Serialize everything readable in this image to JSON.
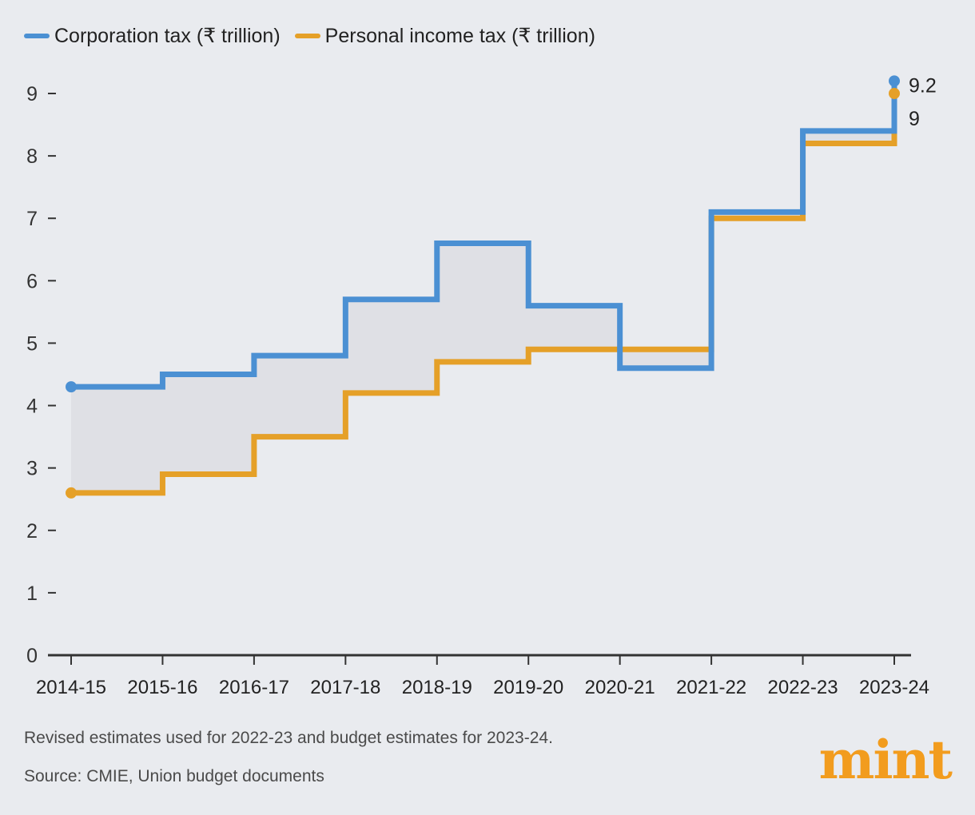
{
  "legend": {
    "corporation": "Corporation tax (₹ trillion)",
    "personal": "Personal income tax (₹ trillion)"
  },
  "colors": {
    "corporation": "#4b90d3",
    "personal": "#e5a028",
    "area": "#dfe0e5",
    "axis": "#333333"
  },
  "chart_data": {
    "type": "line",
    "step": true,
    "title": "",
    "xlabel": "",
    "ylabel": "",
    "ylim": [
      0,
      9
    ],
    "y_ticks": [
      "0",
      "1",
      "2",
      "3",
      "4",
      "5",
      "6",
      "7",
      "8",
      "9"
    ],
    "categories": [
      "2014-15",
      "2015-16",
      "2016-17",
      "2017-18",
      "2018-19",
      "2019-20",
      "2020-21",
      "2021-22",
      "2022-23",
      "2023-24"
    ],
    "series": [
      {
        "name": "Corporation tax (₹ trillion)",
        "values": [
          4.3,
          4.5,
          4.8,
          5.7,
          6.6,
          5.6,
          4.6,
          7.1,
          8.4,
          9.2
        ],
        "end_label": "9.2"
      },
      {
        "name": "Personal income tax (₹ trillion)",
        "values": [
          2.6,
          2.9,
          3.5,
          4.2,
          4.7,
          4.9,
          4.9,
          7.0,
          8.2,
          9.0
        ],
        "end_label": "9"
      }
    ],
    "legend_position": "top-left",
    "grid": false
  },
  "notes": {
    "revised": "Revised estimates used for 2022-23 and budget estimates for 2023-24.",
    "source": "Source: CMIE, Union budget documents"
  },
  "brand": "mint"
}
